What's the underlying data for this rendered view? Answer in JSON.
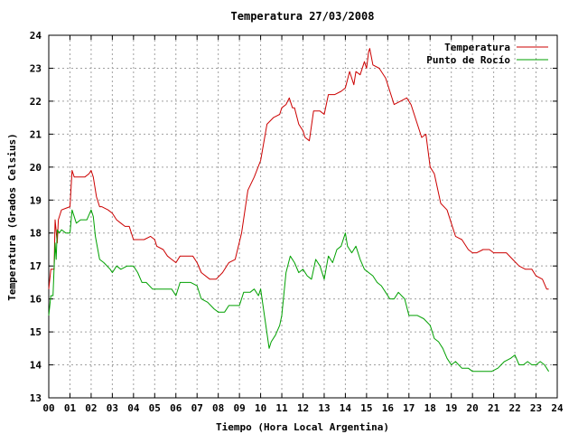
{
  "chart_data": {
    "type": "line",
    "title": "Temperatura 27/03/2008",
    "xlabel": "Tiempo (Hora Local Argentina)",
    "ylabel": "Temperatura (Grados Celsius)",
    "xlim": [
      0,
      24
    ],
    "ylim": [
      13,
      24
    ],
    "x_ticks": [
      "00",
      "01",
      "02",
      "03",
      "04",
      "05",
      "06",
      "07",
      "08",
      "09",
      "10",
      "11",
      "12",
      "13",
      "14",
      "15",
      "16",
      "17",
      "18",
      "19",
      "20",
      "21",
      "22",
      "23",
      "24"
    ],
    "y_ticks": [
      "13",
      "14",
      "15",
      "16",
      "17",
      "18",
      "19",
      "20",
      "21",
      "22",
      "23",
      "24"
    ],
    "grid": true,
    "legend_position": "top-right",
    "series": [
      {
        "name": "Temperatura",
        "color": "#cc0000",
        "x": [
          0.0,
          0.1,
          0.25,
          0.3,
          0.4,
          0.45,
          0.55,
          0.6,
          0.8,
          1.0,
          1.1,
          1.2,
          1.4,
          1.7,
          1.9,
          2.0,
          2.1,
          2.25,
          2.4,
          2.5,
          2.8,
          3.0,
          3.2,
          3.4,
          3.6,
          3.8,
          4.0,
          4.2,
          4.5,
          4.8,
          5.0,
          5.1,
          5.4,
          5.6,
          5.8,
          6.0,
          6.2,
          6.5,
          6.8,
          7.0,
          7.2,
          7.6,
          7.9,
          8.2,
          8.5,
          8.8,
          9.1,
          9.4,
          9.7,
          10.0,
          10.3,
          10.6,
          10.9,
          11.0,
          11.2,
          11.35,
          11.5,
          11.6,
          11.8,
          12.0,
          12.1,
          12.3,
          12.5,
          12.8,
          13.0,
          13.2,
          13.5,
          13.8,
          14.0,
          14.2,
          14.4,
          14.5,
          14.7,
          14.9,
          15.0,
          15.1,
          15.15,
          15.3,
          15.6,
          15.9,
          16.1,
          16.3,
          16.6,
          16.9,
          17.1,
          17.3,
          17.6,
          17.8,
          18.0,
          18.2,
          18.5,
          18.8,
          19.0,
          19.2,
          19.5,
          19.8,
          20.0,
          20.2,
          20.5,
          20.8,
          21.0,
          21.3,
          21.6,
          21.9,
          22.2,
          22.5,
          22.8,
          23.0,
          23.3,
          23.5,
          23.6
        ],
        "values": [
          16.3,
          16.9,
          16.9,
          18.4,
          17.7,
          18.4,
          18.6,
          18.7,
          18.75,
          18.8,
          19.9,
          19.7,
          19.7,
          19.7,
          19.8,
          19.9,
          19.7,
          19.1,
          18.8,
          18.8,
          18.7,
          18.6,
          18.4,
          18.3,
          18.2,
          18.2,
          17.8,
          17.8,
          17.8,
          17.9,
          17.8,
          17.6,
          17.5,
          17.3,
          17.2,
          17.1,
          17.3,
          17.3,
          17.3,
          17.1,
          16.8,
          16.6,
          16.6,
          16.8,
          17.1,
          17.2,
          18.0,
          19.3,
          19.7,
          20.2,
          21.3,
          21.5,
          21.6,
          21.8,
          21.9,
          22.1,
          21.8,
          21.8,
          21.3,
          21.1,
          20.9,
          20.8,
          21.7,
          21.7,
          21.6,
          22.2,
          22.2,
          22.3,
          22.4,
          22.9,
          22.5,
          22.9,
          22.8,
          23.2,
          23.0,
          23.5,
          23.6,
          23.1,
          23.0,
          22.7,
          22.3,
          21.9,
          22.0,
          22.1,
          21.9,
          21.5,
          20.9,
          21.0,
          20.0,
          19.8,
          18.9,
          18.7,
          18.3,
          17.9,
          17.8,
          17.5,
          17.4,
          17.4,
          17.5,
          17.5,
          17.4,
          17.4,
          17.4,
          17.2,
          17.0,
          16.9,
          16.9,
          16.7,
          16.6,
          16.3,
          16.3
        ]
      },
      {
        "name": "Punto de Rocío",
        "color": "#00a000",
        "x": [
          0.0,
          0.1,
          0.2,
          0.3,
          0.35,
          0.4,
          0.5,
          0.6,
          0.8,
          1.0,
          1.1,
          1.3,
          1.5,
          1.8,
          2.0,
          2.1,
          2.2,
          2.4,
          2.6,
          2.9,
          3.0,
          3.2,
          3.4,
          3.7,
          4.0,
          4.2,
          4.4,
          4.6,
          4.9,
          5.2,
          5.5,
          5.8,
          6.0,
          6.2,
          6.4,
          6.7,
          7.0,
          7.2,
          7.5,
          7.8,
          8.0,
          8.3,
          8.5,
          8.8,
          9.0,
          9.2,
          9.5,
          9.7,
          9.9,
          10.0,
          10.2,
          10.4,
          10.5,
          10.7,
          10.9,
          11.0,
          11.2,
          11.4,
          11.6,
          11.8,
          12.0,
          12.2,
          12.4,
          12.6,
          12.8,
          13.0,
          13.2,
          13.4,
          13.6,
          13.8,
          14.0,
          14.1,
          14.3,
          14.5,
          14.7,
          14.9,
          15.1,
          15.3,
          15.5,
          15.7,
          15.9,
          16.1,
          16.3,
          16.5,
          16.8,
          17.0,
          17.2,
          17.4,
          17.7,
          18.0,
          18.2,
          18.4,
          18.6,
          18.8,
          19.0,
          19.2,
          19.5,
          19.8,
          20.0,
          20.3,
          20.6,
          20.9,
          21.2,
          21.5,
          21.8,
          22.0,
          22.2,
          22.4,
          22.6,
          22.8,
          23.0,
          23.2,
          23.4,
          23.6
        ],
        "values": [
          15.5,
          16.1,
          16.1,
          17.7,
          17.2,
          18.1,
          18.0,
          18.1,
          18.0,
          18.0,
          18.7,
          18.3,
          18.4,
          18.4,
          18.7,
          18.5,
          17.9,
          17.2,
          17.1,
          16.9,
          16.8,
          17.0,
          16.9,
          17.0,
          17.0,
          16.8,
          16.5,
          16.5,
          16.3,
          16.3,
          16.3,
          16.3,
          16.1,
          16.5,
          16.5,
          16.5,
          16.4,
          16.0,
          15.9,
          15.7,
          15.6,
          15.6,
          15.8,
          15.8,
          15.8,
          16.2,
          16.2,
          16.3,
          16.1,
          16.3,
          15.4,
          14.5,
          14.7,
          14.9,
          15.2,
          15.5,
          16.8,
          17.3,
          17.1,
          16.8,
          16.9,
          16.7,
          16.6,
          17.2,
          17.0,
          16.6,
          17.3,
          17.1,
          17.5,
          17.6,
          18.0,
          17.6,
          17.4,
          17.6,
          17.2,
          16.9,
          16.8,
          16.7,
          16.5,
          16.4,
          16.2,
          16.0,
          16.0,
          16.2,
          16.0,
          15.5,
          15.5,
          15.5,
          15.4,
          15.2,
          14.8,
          14.7,
          14.5,
          14.2,
          14.0,
          14.1,
          13.9,
          13.9,
          13.8,
          13.8,
          13.8,
          13.8,
          13.9,
          14.1,
          14.2,
          14.3,
          14.0,
          14.0,
          14.1,
          14.0,
          14.0,
          14.1,
          14.0,
          13.8
        ]
      }
    ]
  }
}
